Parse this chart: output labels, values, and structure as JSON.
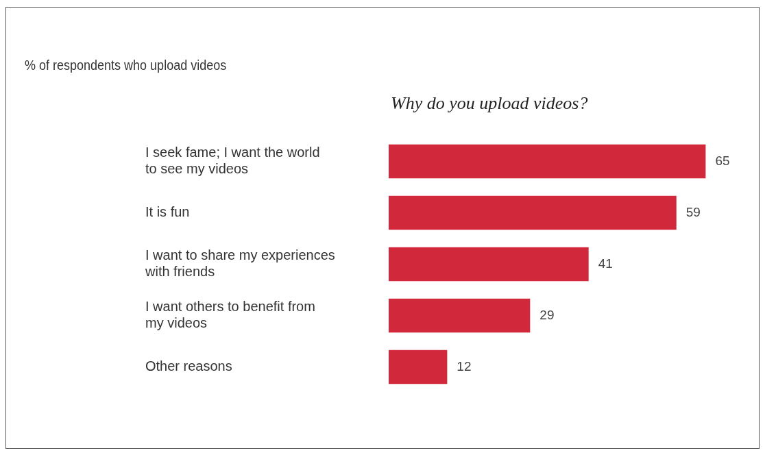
{
  "chart_data": {
    "type": "bar",
    "orientation": "horizontal",
    "title": "Why do you upload videos?",
    "subtitle": "% of respondents who upload videos",
    "categories": [
      "I seek fame; I want the world to see my videos",
      "It is fun",
      "I want to share my experiences with friends",
      "I want others to benefit from my videos",
      "Other reasons"
    ],
    "values": [
      65,
      59,
      41,
      29,
      12
    ],
    "color": "#d2283c",
    "data_labels": true,
    "grid": false
  }
}
